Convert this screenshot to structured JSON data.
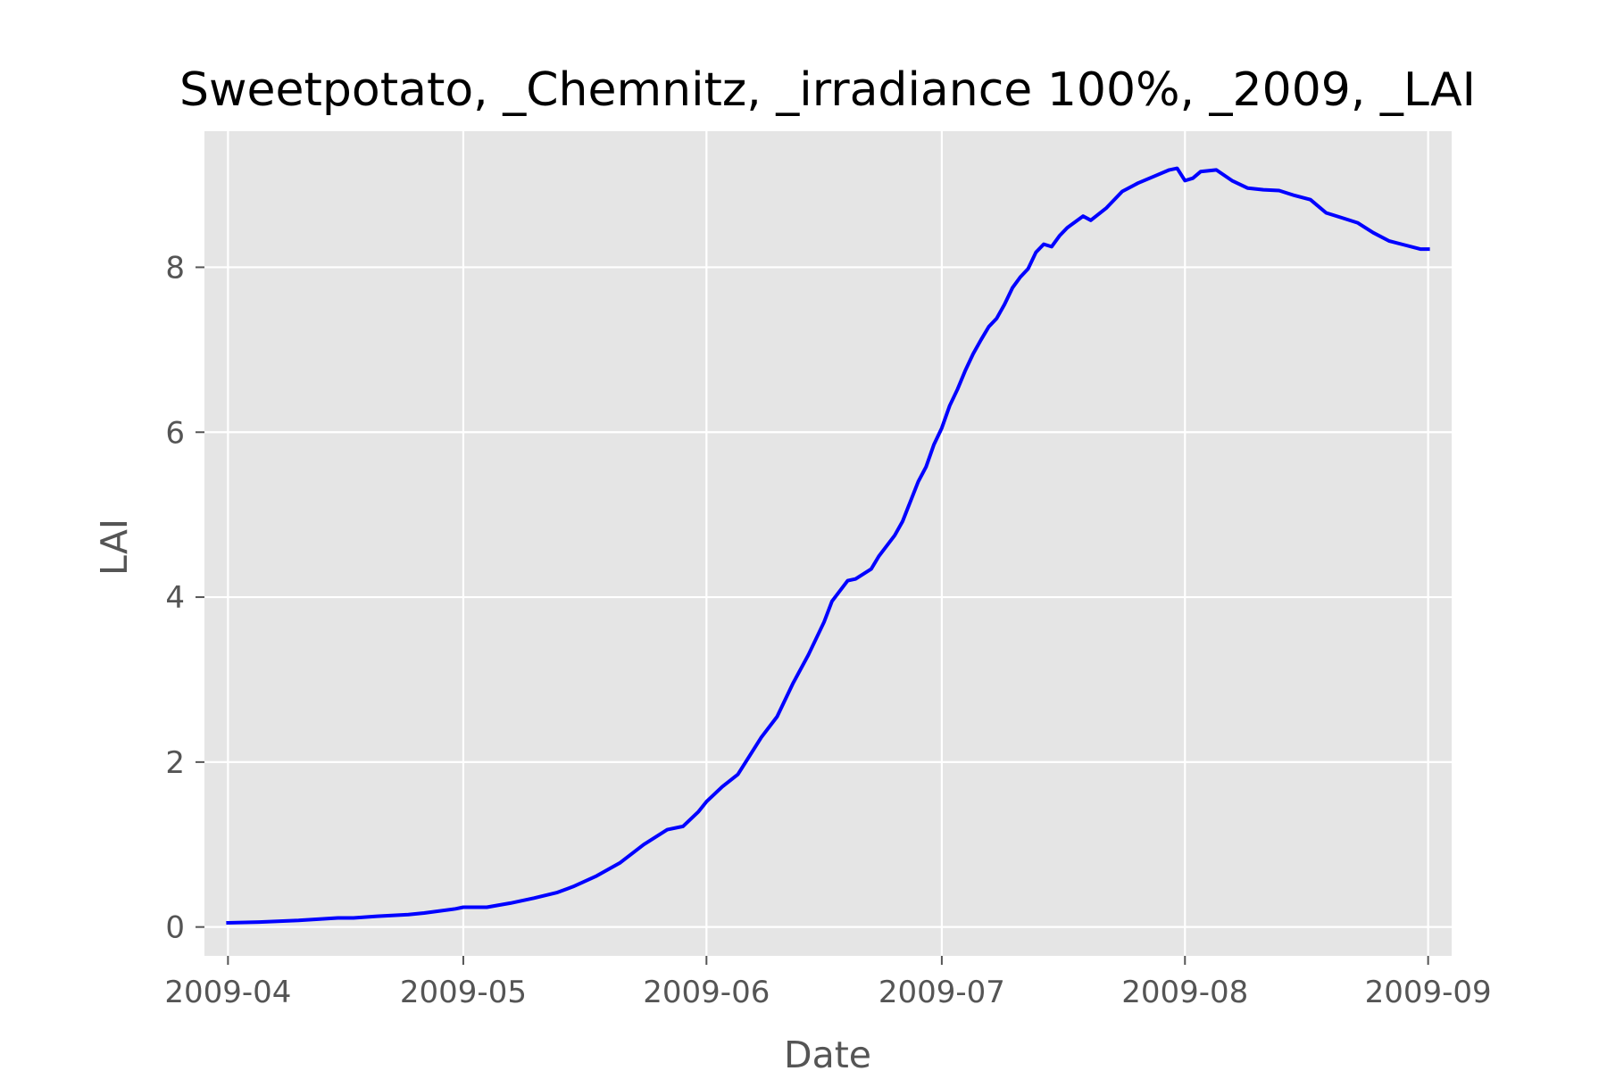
{
  "chart_data": {
    "type": "line",
    "title": "Sweetpotato, _Chemnitz, _irradiance 100%, _2009, _LAI",
    "xlabel": "Date",
    "ylabel": "LAI",
    "xlim": [
      "2009-03-29",
      "2009-09-04"
    ],
    "ylim": [
      -0.35,
      9.65
    ],
    "x_ticks": [
      "2009-04-01",
      "2009-05-01",
      "2009-06-01",
      "2009-07-01",
      "2009-08-01",
      "2009-09-01"
    ],
    "x_tick_labels": [
      "2009-04",
      "2009-05",
      "2009-06",
      "2009-07",
      "2009-08",
      "2009-09"
    ],
    "y_ticks": [
      0,
      2,
      4,
      6,
      8
    ],
    "y_tick_labels": [
      "0",
      "2",
      "4",
      "6",
      "8"
    ],
    "grid": true,
    "colors": {
      "line": "#0000ff",
      "plot_background": "#e5e5e5",
      "grid": "#ffffff"
    },
    "series": [
      {
        "x": [
          "2009-04-01",
          "2009-04-05",
          "2009-04-10",
          "2009-04-15",
          "2009-04-17",
          "2009-04-20",
          "2009-04-24",
          "2009-04-26",
          "2009-04-30",
          "2009-05-01",
          "2009-05-04",
          "2009-05-07",
          "2009-05-10",
          "2009-05-13",
          "2009-05-15",
          "2009-05-18",
          "2009-05-21",
          "2009-05-24",
          "2009-05-27",
          "2009-05-29",
          "2009-05-31",
          "2009-06-01",
          "2009-06-03",
          "2009-06-05",
          "2009-06-08",
          "2009-06-10",
          "2009-06-12",
          "2009-06-14",
          "2009-06-16",
          "2009-06-17",
          "2009-06-19",
          "2009-06-20",
          "2009-06-22",
          "2009-06-23",
          "2009-06-25",
          "2009-06-26",
          "2009-06-28",
          "2009-06-29",
          "2009-06-30",
          "2009-07-01",
          "2009-07-02",
          "2009-07-03",
          "2009-07-04",
          "2009-07-05",
          "2009-07-06",
          "2009-07-07",
          "2009-07-08",
          "2009-07-09",
          "2009-07-10",
          "2009-07-11",
          "2009-07-12",
          "2009-07-13",
          "2009-07-14",
          "2009-07-15",
          "2009-07-16",
          "2009-07-17",
          "2009-07-19",
          "2009-07-20",
          "2009-07-22",
          "2009-07-24",
          "2009-07-26",
          "2009-07-28",
          "2009-07-30",
          "2009-07-31",
          "2009-08-01",
          "2009-08-02",
          "2009-08-03",
          "2009-08-05",
          "2009-08-07",
          "2009-08-09",
          "2009-08-11",
          "2009-08-13",
          "2009-08-15",
          "2009-08-17",
          "2009-08-19",
          "2009-08-21",
          "2009-08-23",
          "2009-08-25",
          "2009-08-27",
          "2009-08-29",
          "2009-08-31",
          "2009-09-01"
        ],
        "y": [
          0.05,
          0.06,
          0.08,
          0.11,
          0.11,
          0.13,
          0.15,
          0.17,
          0.22,
          0.24,
          0.24,
          0.29,
          0.35,
          0.42,
          0.49,
          0.62,
          0.78,
          1.0,
          1.18,
          1.22,
          1.4,
          1.52,
          1.7,
          1.85,
          2.3,
          2.55,
          2.95,
          3.3,
          3.7,
          3.95,
          4.2,
          4.22,
          4.34,
          4.5,
          4.75,
          4.92,
          5.4,
          5.58,
          5.85,
          6.05,
          6.32,
          6.52,
          6.75,
          6.95,
          7.12,
          7.28,
          7.38,
          7.55,
          7.75,
          7.88,
          7.98,
          8.18,
          8.28,
          8.25,
          8.38,
          8.48,
          8.62,
          8.57,
          8.72,
          8.92,
          9.02,
          9.1,
          9.18,
          9.2,
          9.05,
          9.08,
          9.16,
          9.18,
          9.05,
          8.96,
          8.94,
          8.93,
          8.87,
          8.82,
          8.66,
          8.6,
          8.54,
          8.42,
          8.32,
          8.27,
          8.22,
          8.22
        ]
      }
    ]
  }
}
